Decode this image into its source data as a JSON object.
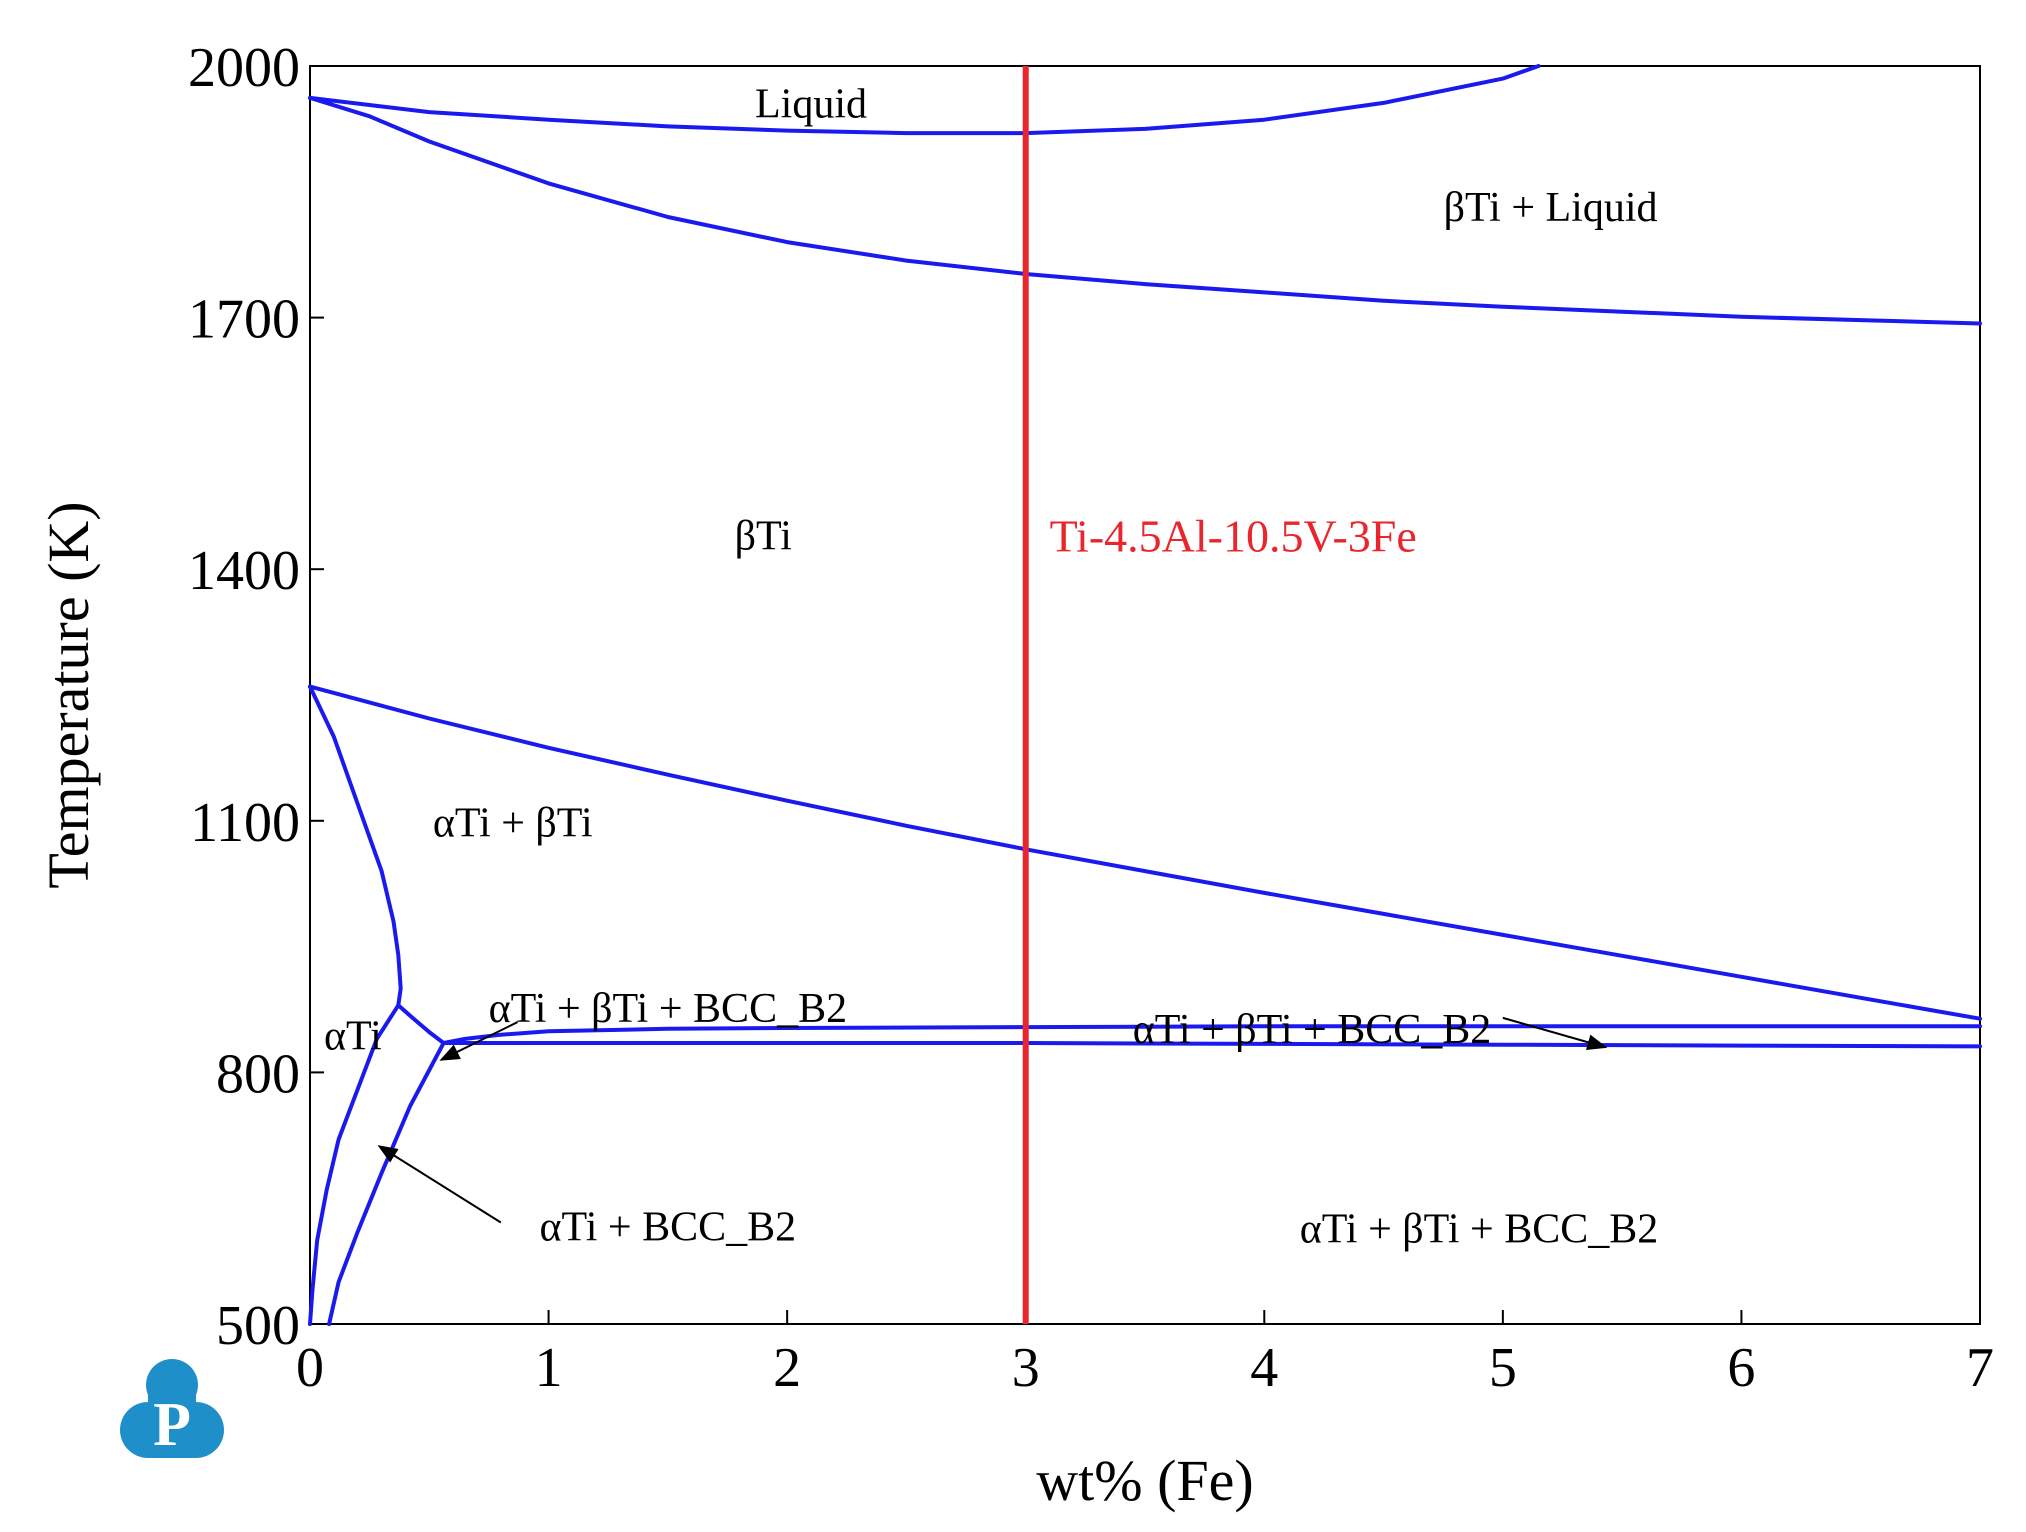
{
  "chart_data": {
    "type": "line",
    "title": "",
    "xlabel": "wt% (Fe)",
    "ylabel": "Temperature (K)",
    "xlim": [
      0,
      7
    ],
    "ylim": [
      500,
      2000
    ],
    "x_ticks": [
      0,
      1,
      2,
      3,
      4,
      5,
      6,
      7
    ],
    "y_ticks": [
      500,
      800,
      1100,
      1400,
      1700,
      2000
    ],
    "grid": false,
    "legend": "none",
    "colors": {
      "phase_boundary": "#1a1aee",
      "alloy_line": "#e8262c",
      "logo": "#1f8fc9"
    },
    "series": [
      {
        "points": [
          [
            0,
            1962
          ],
          [
            0.5,
            1945
          ],
          [
            1,
            1936
          ],
          [
            1.5,
            1928
          ],
          [
            2,
            1923
          ],
          [
            2.5,
            1920
          ],
          [
            3,
            1920
          ],
          [
            3.5,
            1925
          ],
          [
            4,
            1936
          ],
          [
            4.5,
            1956
          ],
          [
            5,
            1985
          ],
          [
            5.15,
            2000
          ]
        ]
      },
      {
        "points": [
          [
            0,
            1962
          ],
          [
            0.25,
            1940
          ],
          [
            0.5,
            1910
          ],
          [
            0.8,
            1880
          ],
          [
            1,
            1860
          ],
          [
            1.5,
            1820
          ],
          [
            2,
            1790
          ],
          [
            2.5,
            1768
          ],
          [
            3,
            1752
          ],
          [
            3.5,
            1740
          ],
          [
            4,
            1730
          ],
          [
            4.5,
            1720
          ],
          [
            5,
            1713
          ],
          [
            5.5,
            1707
          ],
          [
            6,
            1701
          ],
          [
            6.5,
            1697
          ],
          [
            7,
            1693
          ]
        ]
      },
      {
        "points": [
          [
            0,
            1260
          ],
          [
            0.5,
            1222
          ],
          [
            1,
            1187
          ],
          [
            1.5,
            1155
          ],
          [
            2,
            1124
          ],
          [
            2.5,
            1094
          ],
          [
            3,
            1066
          ],
          [
            3.5,
            1040
          ],
          [
            4,
            1014
          ],
          [
            4.5,
            989
          ],
          [
            5,
            964
          ],
          [
            5.5,
            939
          ],
          [
            6,
            914
          ],
          [
            6.5,
            889
          ],
          [
            7,
            864
          ]
        ]
      },
      {
        "points": [
          [
            0,
            1260
          ],
          [
            0.1,
            1200
          ],
          [
            0.2,
            1120
          ],
          [
            0.3,
            1040
          ],
          [
            0.35,
            980
          ],
          [
            0.37,
            940
          ],
          [
            0.38,
            900
          ],
          [
            0.37,
            880
          ]
        ]
      },
      {
        "points": [
          [
            0,
            500
          ],
          [
            0.01,
            540
          ],
          [
            0.03,
            600
          ],
          [
            0.07,
            660
          ],
          [
            0.12,
            720
          ],
          [
            0.2,
            780
          ],
          [
            0.28,
            840
          ],
          [
            0.37,
            880
          ]
        ]
      },
      {
        "points": [
          [
            0.37,
            880
          ],
          [
            0.43,
            865
          ],
          [
            0.5,
            848
          ],
          [
            0.56,
            835
          ]
        ]
      },
      {
        "points": [
          [
            0.08,
            500
          ],
          [
            0.12,
            550
          ],
          [
            0.2,
            610
          ],
          [
            0.3,
            680
          ],
          [
            0.42,
            760
          ],
          [
            0.56,
            835
          ]
        ]
      },
      {
        "points": [
          [
            0.56,
            835
          ],
          [
            0.65,
            840
          ],
          [
            0.8,
            845
          ],
          [
            1,
            849
          ],
          [
            1.5,
            852
          ],
          [
            2,
            853
          ],
          [
            3,
            854
          ],
          [
            4,
            855
          ],
          [
            5,
            855
          ],
          [
            6,
            855
          ],
          [
            7,
            855
          ]
        ]
      },
      {
        "points": [
          [
            0.56,
            835
          ],
          [
            1,
            835
          ],
          [
            2,
            835
          ],
          [
            3,
            835
          ],
          [
            4,
            834
          ],
          [
            5,
            833
          ],
          [
            6,
            832
          ],
          [
            7,
            831
          ]
        ]
      }
    ],
    "alloy_line": {
      "x": 3,
      "label": "Ti-4.5Al-10.5V-3Fe",
      "label_x": 3.1,
      "label_y": 1440
    },
    "region_labels": [
      {
        "text": "Liquid",
        "x": 2.1,
        "y": 1955
      },
      {
        "text": "βTi + Liquid",
        "x": 5.2,
        "y": 1832
      },
      {
        "text": "βTi",
        "x": 1.9,
        "y": 1440
      },
      {
        "text": "αTi + βTi",
        "x": 0.85,
        "y": 1098
      },
      {
        "text": "αTi",
        "x": 0.18,
        "y": 844
      },
      {
        "text": "αTi + βTi + BCC_B2",
        "x": 1.5,
        "y": 877
      },
      {
        "text": "αTi + βTi + BCC_B2",
        "x": 4.2,
        "y": 852
      },
      {
        "text": "αTi + BCC_B2",
        "x": 1.5,
        "y": 616
      },
      {
        "text": "αTi + βTi + BCC_B2",
        "x": 4.9,
        "y": 614
      }
    ],
    "arrows": [
      {
        "from": [
          0.87,
          860
        ],
        "to": [
          0.55,
          815
        ]
      },
      {
        "from": [
          0.8,
          621
        ],
        "to": [
          0.29,
          712
        ]
      },
      {
        "from": [
          5.0,
          865
        ],
        "to": [
          5.43,
          830
        ]
      }
    ]
  }
}
